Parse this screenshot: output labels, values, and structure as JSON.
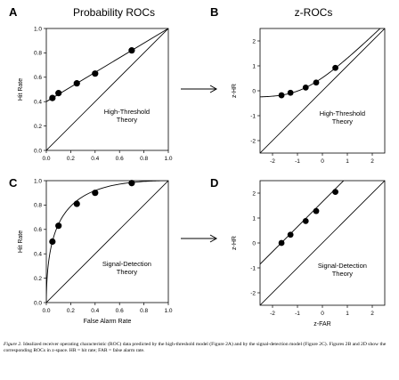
{
  "figure": {
    "column_titles": [
      "Probability ROCs",
      "z-ROCs"
    ],
    "caption_label": "Figure 2.",
    "caption_text": "Idealized receiver operating characteristic (ROC) data predicted by the high-threshold model (Figure 2A) and by the signal-detection model (Figure 2C). Figures 2B and 2D show the corresponding ROCs in z-space. HR = hit rate; FAR = false alarm rate."
  },
  "colors": {
    "ink": "#000000",
    "background": "#ffffff"
  },
  "chart_data": [
    {
      "panel": "A",
      "type": "scatter",
      "xlabel": "",
      "ylabel": "Hit Rate",
      "xlim": [
        0,
        1
      ],
      "ylim": [
        0,
        1
      ],
      "xticks": [
        "0.0",
        "0.2",
        "0.4",
        "0.6",
        "0.8",
        "1.0"
      ],
      "yticks": [
        "0.0",
        "0.2",
        "0.4",
        "0.6",
        "0.8",
        "1.0"
      ],
      "annotation": [
        "High-Threshold",
        "Theory"
      ],
      "points": [
        [
          0.05,
          0.43
        ],
        [
          0.1,
          0.47
        ],
        [
          0.25,
          0.55
        ],
        [
          0.4,
          0.63
        ],
        [
          0.7,
          0.82
        ]
      ],
      "fit_line": [
        [
          0,
          0.4
        ],
        [
          1,
          1
        ]
      ],
      "chance_line": [
        [
          0,
          0
        ],
        [
          1,
          1
        ]
      ]
    },
    {
      "panel": "B",
      "type": "scatter",
      "xlabel": "",
      "ylabel": "z-HR",
      "xlim": [
        -2.5,
        2.5
      ],
      "ylim": [
        -2.5,
        2.5
      ],
      "xticks": [
        "-2",
        "-1",
        "0",
        "1",
        "2"
      ],
      "yticks": [
        "-2",
        "-1",
        "0",
        "1",
        "2"
      ],
      "annotation": [
        "High-Threshold",
        "Theory"
      ],
      "points": [
        [
          -1.64,
          -0.18
        ],
        [
          -1.28,
          -0.08
        ],
        [
          -0.67,
          0.13
        ],
        [
          -0.25,
          0.33
        ],
        [
          0.52,
          0.92
        ]
      ],
      "fit_curve": "zROC of high-threshold line",
      "chance_line": [
        [
          -2.5,
          -2.5
        ],
        [
          2.5,
          2.5
        ]
      ]
    },
    {
      "panel": "C",
      "type": "scatter",
      "xlabel": "False Alarm Rate",
      "ylabel": "Hit Rate",
      "xlim": [
        0,
        1
      ],
      "ylim": [
        0,
        1
      ],
      "xticks": [
        "0.0",
        "0.2",
        "0.4",
        "0.6",
        "0.8",
        "1.0"
      ],
      "yticks": [
        "0.0",
        "0.2",
        "0.4",
        "0.6",
        "0.8",
        "1.0"
      ],
      "annotation": [
        "Signal-Detection",
        "Theory"
      ],
      "points": [
        [
          0.05,
          0.5
        ],
        [
          0.1,
          0.63
        ],
        [
          0.25,
          0.81
        ],
        [
          0.4,
          0.9
        ],
        [
          0.7,
          0.98
        ]
      ],
      "d_prime": 1.65,
      "chance_line": [
        [
          0,
          0
        ],
        [
          1,
          1
        ]
      ]
    },
    {
      "panel": "D",
      "type": "scatter",
      "xlabel": "z-FAR",
      "ylabel": "z-HR",
      "xlim": [
        -2.5,
        2.5
      ],
      "ylim": [
        -2.5,
        2.5
      ],
      "xticks": [
        "-2",
        "-1",
        "0",
        "1",
        "2"
      ],
      "yticks": [
        "-2",
        "-1",
        "0",
        "1",
        "2"
      ],
      "annotation": [
        "Signal-Detection",
        "Theory"
      ],
      "points": [
        [
          -1.64,
          0.0
        ],
        [
          -1.28,
          0.33
        ],
        [
          -0.67,
          0.88
        ],
        [
          -0.25,
          1.28
        ],
        [
          0.52,
          2.05
        ]
      ],
      "fit_line": [
        [
          -2.5,
          -0.85
        ],
        [
          0.85,
          2.5
        ]
      ],
      "chance_line": [
        [
          -2.5,
          -2.5
        ],
        [
          2.5,
          2.5
        ]
      ]
    }
  ]
}
